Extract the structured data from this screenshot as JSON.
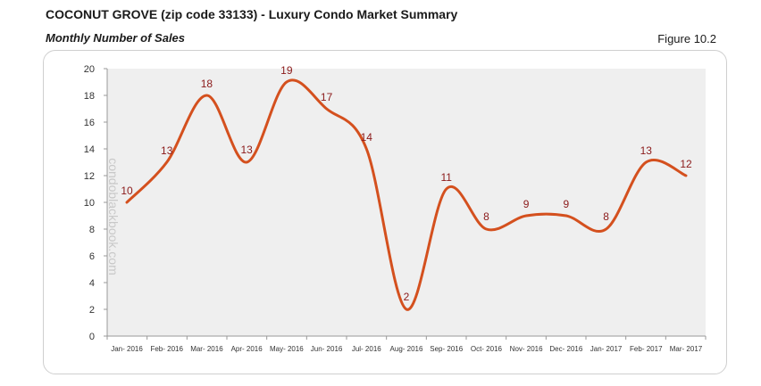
{
  "header": {
    "title": "COCONUT GROVE (zip code 33133) - Luxury Condo Market Summary",
    "subtitle": "Monthly Number of Sales",
    "figure": "Figure 10.2"
  },
  "watermark": "condoblackbook.com",
  "colors": {
    "line": "#d4501e",
    "label": "#8b1a1a",
    "plot_bg": "#efefef",
    "axis": "#999999"
  },
  "chart_data": {
    "type": "line",
    "title": "Monthly Number of Sales",
    "xlabel": "",
    "ylabel": "",
    "ylim": [
      0,
      20
    ],
    "yticks": [
      0,
      2,
      4,
      6,
      8,
      10,
      12,
      14,
      16,
      18,
      20
    ],
    "grid": false,
    "smooth": true,
    "categories": [
      "Jan- 2016",
      "Feb- 2016",
      "Mar- 2016",
      "Apr- 2016",
      "May- 2016",
      "Jun- 2016",
      "Jul- 2016",
      "Aug- 2016",
      "Sep- 2016",
      "Oct- 2016",
      "Nov- 2016",
      "Dec- 2016",
      "Jan- 2017",
      "Feb- 2017",
      "Mar- 2017"
    ],
    "series": [
      {
        "name": "Number of Sales",
        "values": [
          10,
          13,
          18,
          13,
          19,
          17,
          14,
          2,
          11,
          8,
          9,
          9,
          8,
          13,
          12
        ]
      }
    ]
  }
}
